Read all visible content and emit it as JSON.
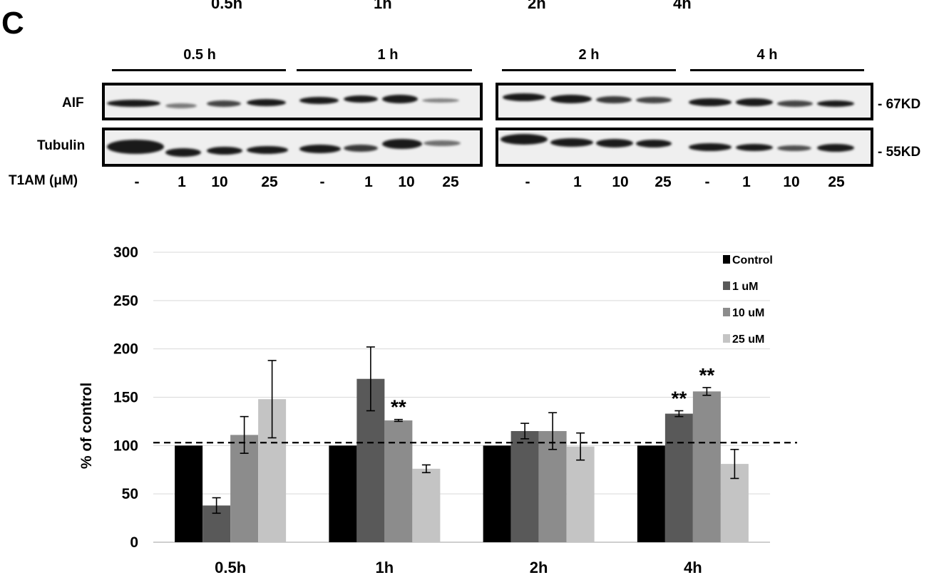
{
  "panel_label": "C",
  "top_cropped_labels": [
    "0.5h",
    "1h",
    "2h",
    "4h"
  ],
  "blot": {
    "timepoints": [
      "0.5 h",
      "1 h",
      "2 h",
      "4 h"
    ],
    "rows": [
      "AIF",
      "Tubulin"
    ],
    "markers": [
      "- 67KD",
      "- 55KD"
    ],
    "treatment_label": "T1AM (μM)",
    "lanes": [
      "-",
      "1",
      "10",
      "25",
      "-",
      "1",
      "10",
      "25",
      "-",
      "1",
      "10",
      "25",
      "-",
      "1",
      "10",
      "25"
    ]
  },
  "chart_data": {
    "type": "bar",
    "categories": [
      "0.5h",
      "1h",
      "2h",
      "4h"
    ],
    "ylabel": "% of control",
    "ylim": [
      0,
      300
    ],
    "yticks": [
      0,
      50,
      100,
      150,
      200,
      250,
      300
    ],
    "grid": true,
    "legend_position": "top-right",
    "reference_line": 103,
    "series": [
      {
        "name": "Control",
        "color": "#000000",
        "values": [
          100,
          100,
          100,
          100
        ],
        "errors": [
          0,
          0,
          0,
          0
        ]
      },
      {
        "name": "1 uM",
        "color": "#595959",
        "values": [
          38,
          169,
          115,
          133
        ],
        "errors": [
          8,
          33,
          8,
          3
        ]
      },
      {
        "name": "10 uM",
        "color": "#8c8c8c",
        "values": [
          111,
          126,
          115,
          156
        ],
        "errors": [
          19,
          1,
          19,
          4
        ]
      },
      {
        "name": "25 uM",
        "color": "#c4c4c4",
        "values": [
          148,
          76,
          99,
          81
        ],
        "errors": [
          40,
          4,
          14,
          15
        ]
      }
    ],
    "annotations": [
      {
        "category": "1h",
        "series": "10 uM",
        "text": "**"
      },
      {
        "category": "4h",
        "series": "1 uM",
        "text": "**"
      },
      {
        "category": "4h",
        "series": "10 uM",
        "text": "**"
      }
    ]
  }
}
